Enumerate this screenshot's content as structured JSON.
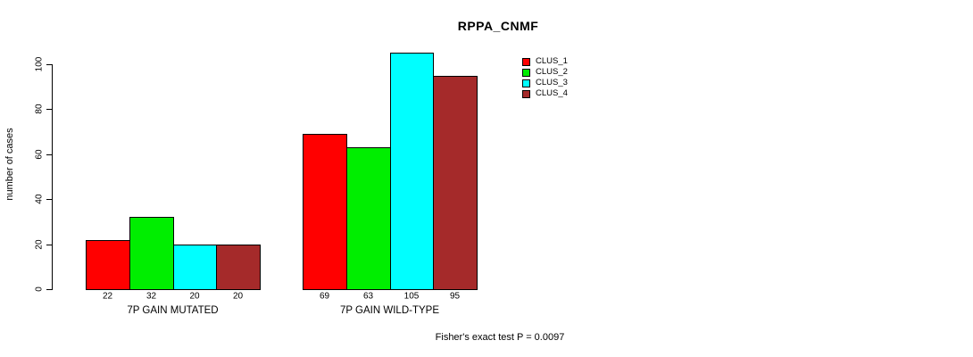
{
  "chart_data": {
    "type": "bar",
    "title": "RPPA_CNMF",
    "ylabel": "number of cases",
    "xlabel": "",
    "ylim": [
      0,
      100
    ],
    "yticks": [
      0,
      20,
      40,
      60,
      80,
      100
    ],
    "grid": false,
    "legend_position": "top-right",
    "categories": [
      "7P GAIN MUTATED",
      "7P GAIN WILD-TYPE"
    ],
    "series": [
      {
        "name": "CLUS_1",
        "color": "#FF0000",
        "values": [
          22,
          69
        ]
      },
      {
        "name": "CLUS_2",
        "color": "#00EE00",
        "values": [
          32,
          63
        ]
      },
      {
        "name": "CLUS_3",
        "color": "#00FFFF",
        "values": [
          20,
          105
        ]
      },
      {
        "name": "CLUS_4",
        "color": "#A52A2A",
        "values": [
          20,
          95
        ]
      }
    ],
    "bar_value_labels": [
      [
        22,
        32,
        20,
        20
      ],
      [
        69,
        63,
        105,
        95
      ]
    ],
    "annotation": "Fisher's exact test P = 0.0097",
    "axis_color": "#000000",
    "background_color": "#FFFFFF"
  }
}
